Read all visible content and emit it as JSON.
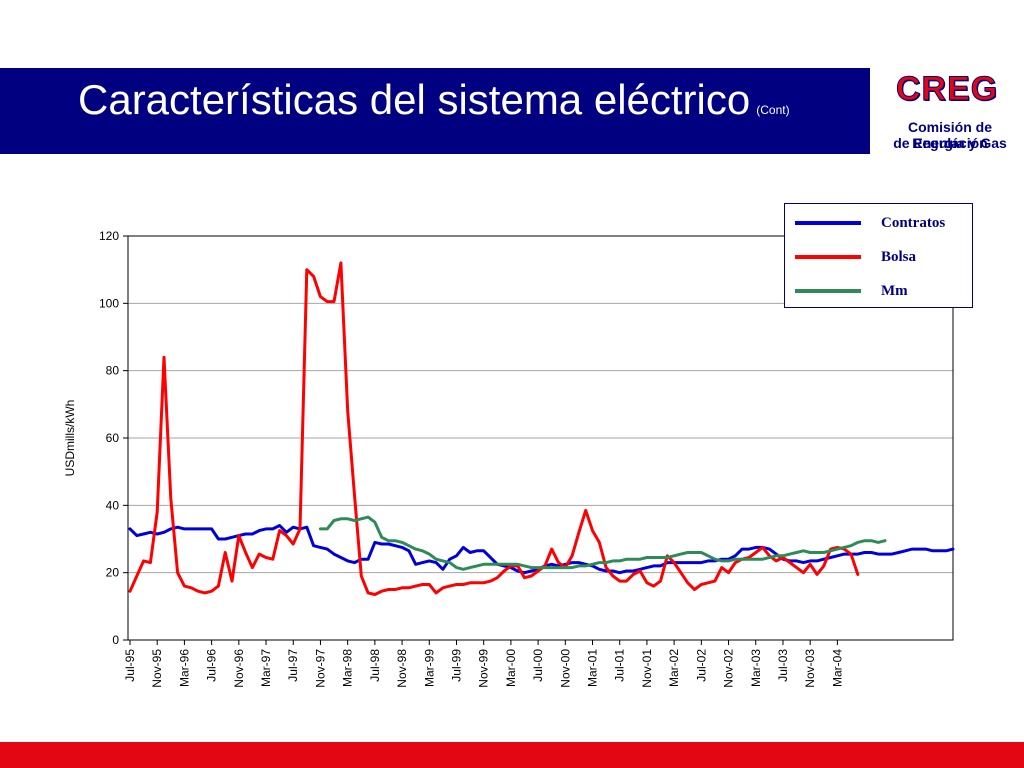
{
  "slide": {
    "title": "Características del sistema eléctrico",
    "subtitle": "(Cont)",
    "logo": {
      "mark": "CREG",
      "line1": "Comisión de Regulación",
      "line2": "de Energía y Gas"
    },
    "colors": {
      "header": "#000080",
      "footer": "#e30613",
      "brand_red": "#e30613"
    }
  },
  "chart_data": {
    "type": "line",
    "ylabel": "USDmills/kWh",
    "xlabel": "",
    "ylim": [
      0,
      120
    ],
    "yticks": [
      0,
      20,
      40,
      60,
      80,
      100,
      120
    ],
    "grid": "horizontal",
    "legend_position": "top-right",
    "x_tick_labels": [
      "Jul-95",
      "Nov-95",
      "Mar-96",
      "Jul-96",
      "Nov-96",
      "Mar-97",
      "Jul-97",
      "Nov-97",
      "Mar-98",
      "Jul-98",
      "Nov-98",
      "Mar-99",
      "Jul-99",
      "Nov-99",
      "Mar-00",
      "Jul-00",
      "Nov-00",
      "Mar-01",
      "Jul-01",
      "Nov-01",
      "Mar-02",
      "Jul-02",
      "Nov-02",
      "Mar-03",
      "Jul-03",
      "Nov-03",
      "Mar-04"
    ],
    "x_start": "Jul-95",
    "series": [
      {
        "name": "Contratos",
        "color": "#0000dd",
        "start": "Jul-95",
        "values": [
          33,
          31,
          31.5,
          32,
          31.5,
          32,
          33,
          33.5,
          33,
          33,
          33,
          33,
          33,
          30,
          30,
          30.5,
          31,
          31.5,
          31.5,
          32.5,
          33,
          33,
          34,
          32,
          33.5,
          33,
          33.5,
          28,
          27.5,
          27,
          25.5,
          24.5,
          23.5,
          23,
          24,
          24,
          29,
          28.5,
          28.5,
          28,
          27.5,
          26.5,
          22.5,
          23,
          23.5,
          23,
          21,
          24,
          25,
          27.5,
          26,
          26.5,
          26.5,
          24.5,
          22.5,
          22,
          21.5,
          20.5,
          20,
          20.5,
          21,
          22,
          22.5,
          22,
          22.5,
          23,
          23,
          22.5,
          22,
          21,
          20.5,
          20.5,
          20,
          20.5,
          20.5,
          21,
          21.5,
          22,
          22,
          23,
          23,
          23,
          23,
          23,
          23,
          23.5,
          23.5,
          24,
          24,
          25,
          27,
          27,
          27.5,
          27.5,
          27,
          25.5,
          24,
          23.5,
          23.5,
          23,
          23.5,
          23.5,
          24,
          24.5,
          25,
          25.5,
          25.5,
          25.5,
          26,
          26,
          25.5,
          25.5,
          25.5,
          26,
          26.5,
          27,
          27,
          27,
          26.5,
          26.5,
          26.5,
          27
        ]
      },
      {
        "name": "Bolsa",
        "color": "#ff0000",
        "start": "Jul-95",
        "values": [
          14.5,
          19,
          23.5,
          23,
          38,
          84,
          42,
          20,
          16,
          15.5,
          14.5,
          14,
          14.5,
          16,
          26,
          17.5,
          31,
          26,
          21.5,
          25.5,
          24.5,
          24,
          32.5,
          31,
          28.5,
          33,
          110,
          108,
          102,
          100.5,
          100.5,
          112,
          68,
          43,
          19,
          14,
          13.5,
          14.5,
          15,
          15,
          15.5,
          15.5,
          16,
          16.5,
          16.5,
          14,
          15.5,
          16,
          16.5,
          16.5,
          17,
          17,
          17,
          17.5,
          18.5,
          20.5,
          22,
          22,
          18.5,
          19,
          20.5,
          22,
          27,
          23,
          21.5,
          25,
          32,
          38.5,
          32.5,
          29,
          21.5,
          19,
          17.5,
          17.5,
          19.5,
          20.5,
          17,
          16,
          17.5,
          25,
          23,
          20,
          17,
          15,
          16.5,
          17,
          17.5,
          21.5,
          20,
          23,
          24,
          24.5,
          26,
          27.5,
          25,
          23.5,
          24.5,
          23,
          21.5,
          20,
          22.5,
          19.5,
          22,
          27,
          27.5,
          27,
          25.5,
          19.5
        ]
      },
      {
        "name": "Mm",
        "color": "#2e8b57",
        "start": "Nov-97",
        "values": [
          33,
          33,
          35.5,
          36,
          36,
          35.5,
          36,
          36.5,
          35,
          30.5,
          29.5,
          29.5,
          29,
          28,
          27,
          26.5,
          25.5,
          24,
          23.5,
          23,
          21.5,
          21,
          21.5,
          22,
          22.5,
          22.5,
          22.5,
          22.5,
          22.5,
          22.5,
          22,
          21.5,
          21.5,
          21.5,
          21.5,
          21.5,
          21.5,
          21.5,
          22,
          22,
          22.5,
          23,
          23,
          23.5,
          23.5,
          24,
          24,
          24,
          24.5,
          24.5,
          24.5,
          24.5,
          25,
          25.5,
          26,
          26,
          26,
          25,
          24,
          23.5,
          23.5,
          24,
          24,
          24,
          24,
          24,
          24.5,
          25,
          25,
          25.5,
          26,
          26.5,
          26,
          26,
          26,
          26.5,
          27,
          27.5,
          28,
          29,
          29.5,
          29.5,
          29,
          29.5
        ]
      }
    ]
  }
}
